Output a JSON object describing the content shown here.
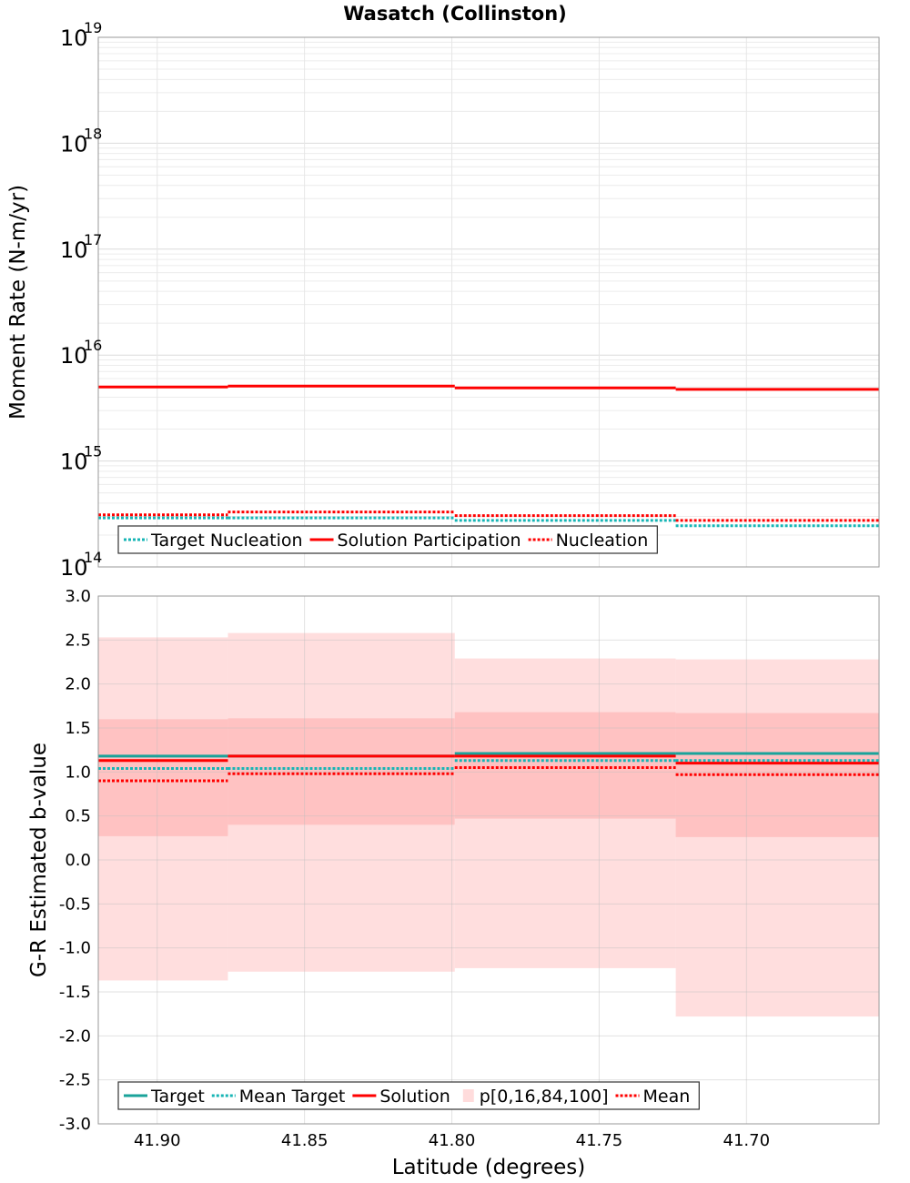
{
  "title": "Wasatch (Collinston)",
  "chart_data": [
    {
      "type": "line",
      "subtype": "step",
      "title": "Wasatch (Collinston)",
      "xlabel": "Latitude (degrees)",
      "ylabel": "Moment Rate (N-m/yr)",
      "yscale": "log",
      "xlim": [
        41.92,
        41.655
      ],
      "ylim": [
        100000000000000.0,
        1e+19
      ],
      "y_tick_exponents": [
        "14",
        "15",
        "16",
        "17",
        "18",
        "19"
      ],
      "grid": true,
      "legend_position": "bottom-left",
      "x_edges": [
        41.92,
        41.876,
        41.799,
        41.724,
        41.655
      ],
      "series": [
        {
          "name": "Target Nucleation",
          "style": "dotted",
          "color": "#17b5b5",
          "values": [
            290000000000000.0,
            290000000000000.0,
            275000000000000.0,
            245000000000000.0
          ]
        },
        {
          "name": "Solution Participation",
          "style": "solid",
          "color": "#ff0000",
          "values": [
            5000000000000000.0,
            5100000000000000.0,
            4900000000000000.0,
            4750000000000000.0
          ]
        },
        {
          "name": "Nucleation",
          "style": "dotted",
          "color": "#ff0000",
          "values": [
            310000000000000.0,
            330000000000000.0,
            305000000000000.0,
            275000000000000.0
          ]
        }
      ]
    },
    {
      "type": "line",
      "subtype": "step",
      "xlabel": "Latitude (degrees)",
      "ylabel": "G-R Estimated b-value",
      "xlim": [
        41.92,
        41.655
      ],
      "ylim": [
        -3.0,
        3.0
      ],
      "x_ticks": [
        "41.90",
        "41.85",
        "41.80",
        "41.75",
        "41.70"
      ],
      "x_tick_values": [
        41.9,
        41.85,
        41.8,
        41.75,
        41.7
      ],
      "y_ticks": [
        "3.0",
        "2.5",
        "2.0",
        "1.5",
        "1.0",
        "0.5",
        "0.0",
        "-0.5",
        "-1.0",
        "-1.5",
        "-2.0",
        "-2.5",
        "-3.0"
      ],
      "y_tick_values": [
        3.0,
        2.5,
        2.0,
        1.5,
        1.0,
        0.5,
        0.0,
        -0.5,
        -1.0,
        -1.5,
        -2.0,
        -2.5,
        -3.0
      ],
      "grid": true,
      "legend_position": "bottom-left",
      "x_edges": [
        41.92,
        41.876,
        41.799,
        41.724,
        41.655
      ],
      "bands": {
        "name": "p[0,16,84,100]",
        "color": "#ff0000",
        "p0": [
          -1.37,
          -1.27,
          -1.23,
          -1.78
        ],
        "p16": [
          0.27,
          0.4,
          0.47,
          0.26
        ],
        "p84": [
          1.6,
          1.61,
          1.68,
          1.67
        ],
        "p100": [
          2.53,
          2.58,
          2.29,
          2.28
        ]
      },
      "series": [
        {
          "name": "Target",
          "style": "solid",
          "color": "#1aa39a",
          "values": [
            1.18,
            1.18,
            1.21,
            1.21
          ]
        },
        {
          "name": "Mean Target",
          "style": "dotted",
          "color": "#17b5b5",
          "values": [
            1.04,
            1.04,
            1.13,
            1.13
          ]
        },
        {
          "name": "Solution",
          "style": "solid",
          "color": "#ff0000",
          "values": [
            1.13,
            1.18,
            1.18,
            1.1
          ]
        },
        {
          "name": "Mean",
          "style": "dotted",
          "color": "#ff0000",
          "values": [
            0.9,
            0.98,
            1.05,
            0.97
          ]
        }
      ]
    }
  ],
  "legend_top": {
    "items": [
      {
        "label": "Target Nucleation",
        "style": "dotted",
        "color": "#17b5b5"
      },
      {
        "label": "Solution Participation",
        "style": "solid",
        "color": "#ff0000"
      },
      {
        "label": "Nucleation",
        "style": "dotted",
        "color": "#ff0000"
      }
    ]
  },
  "legend_bottom": {
    "items": [
      {
        "label": "Target",
        "style": "solid",
        "color": "#1aa39a"
      },
      {
        "label": "Mean Target",
        "style": "dotted",
        "color": "#17b5b5"
      },
      {
        "label": "Solution",
        "style": "solid",
        "color": "#ff0000"
      },
      {
        "label": "p[0,16,84,100]",
        "style": "fill",
        "color": "#ffdcdc"
      },
      {
        "label": "Mean",
        "style": "dotted",
        "color": "#ff0000"
      }
    ]
  }
}
